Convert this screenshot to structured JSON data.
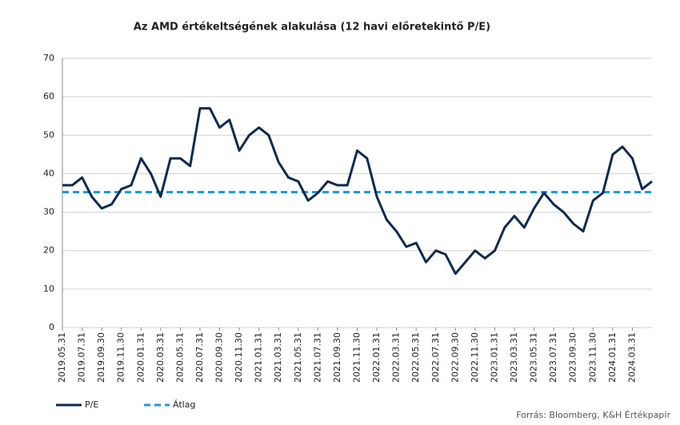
{
  "chart_data": {
    "type": "line",
    "title": "Az AMD értékeltségének alakulása (12 havi előretekintő P/E)",
    "source": "Forrás: Bloomberg, K&H Értékpapír",
    "categories": [
      "2019.05.31",
      null,
      "2019.07.31",
      null,
      "2019.09.30",
      null,
      "2019.11.30",
      null,
      "2020.01.31",
      null,
      "2020.03.31",
      null,
      "2020.05.31",
      null,
      "2020.07.31",
      null,
      "2020.09.30",
      null,
      "2020.11.30",
      null,
      "2021.01.31",
      null,
      "2021.03.31",
      null,
      "2021.05.31",
      null,
      "2021.07.31",
      null,
      "2021.09.30",
      null,
      "2021.11.30",
      null,
      "2022.01.31",
      null,
      "2022.03.31",
      null,
      "2022.05.31",
      null,
      "2022.07.31",
      null,
      "2022.09.30",
      null,
      "2022.11.30",
      null,
      "2023.01.31",
      null,
      "2023.03.31",
      null,
      "2023.05.31",
      null,
      "2023.07.31",
      null,
      "2023.09.30",
      null,
      "2023.11.30",
      null,
      "2024.01.31",
      null,
      "2024.03.31",
      null,
      null
    ],
    "series": [
      {
        "name": "P/E",
        "color": "#0d2a52",
        "dashed": false,
        "values": [
          37,
          37,
          39,
          34,
          31,
          32,
          36,
          37,
          44,
          40,
          34,
          44,
          44,
          42,
          57,
          57,
          52,
          54,
          46,
          50,
          52,
          50,
          43,
          39,
          38,
          33,
          35,
          38,
          37,
          37,
          46,
          44,
          34,
          28,
          25,
          21,
          22,
          17,
          20,
          19,
          14,
          17,
          20,
          18,
          20,
          26,
          29,
          26,
          31,
          35,
          32,
          30,
          27,
          25,
          33,
          35,
          45,
          47,
          44,
          36,
          38
        ]
      },
      {
        "name": "Átlag",
        "color": "#1f9ad6",
        "dashed": true,
        "values": [
          35.2,
          35.2,
          35.2,
          35.2,
          35.2,
          35.2,
          35.2,
          35.2,
          35.2,
          35.2,
          35.2,
          35.2,
          35.2,
          35.2,
          35.2,
          35.2,
          35.2,
          35.2,
          35.2,
          35.2,
          35.2,
          35.2,
          35.2,
          35.2,
          35.2,
          35.2,
          35.2,
          35.2,
          35.2,
          35.2,
          35.2,
          35.2,
          35.2,
          35.2,
          35.2,
          35.2,
          35.2,
          35.2,
          35.2,
          35.2,
          35.2,
          35.2,
          35.2,
          35.2,
          35.2,
          35.2,
          35.2,
          35.2,
          35.2,
          35.2,
          35.2,
          35.2,
          35.2,
          35.2,
          35.2,
          35.2,
          35.2,
          35.2,
          35.2,
          35.2,
          35.2
        ]
      }
    ],
    "ylim": [
      0,
      70
    ],
    "yticks": [
      0,
      10,
      20,
      30,
      40,
      50,
      60,
      70
    ],
    "grid": true
  }
}
